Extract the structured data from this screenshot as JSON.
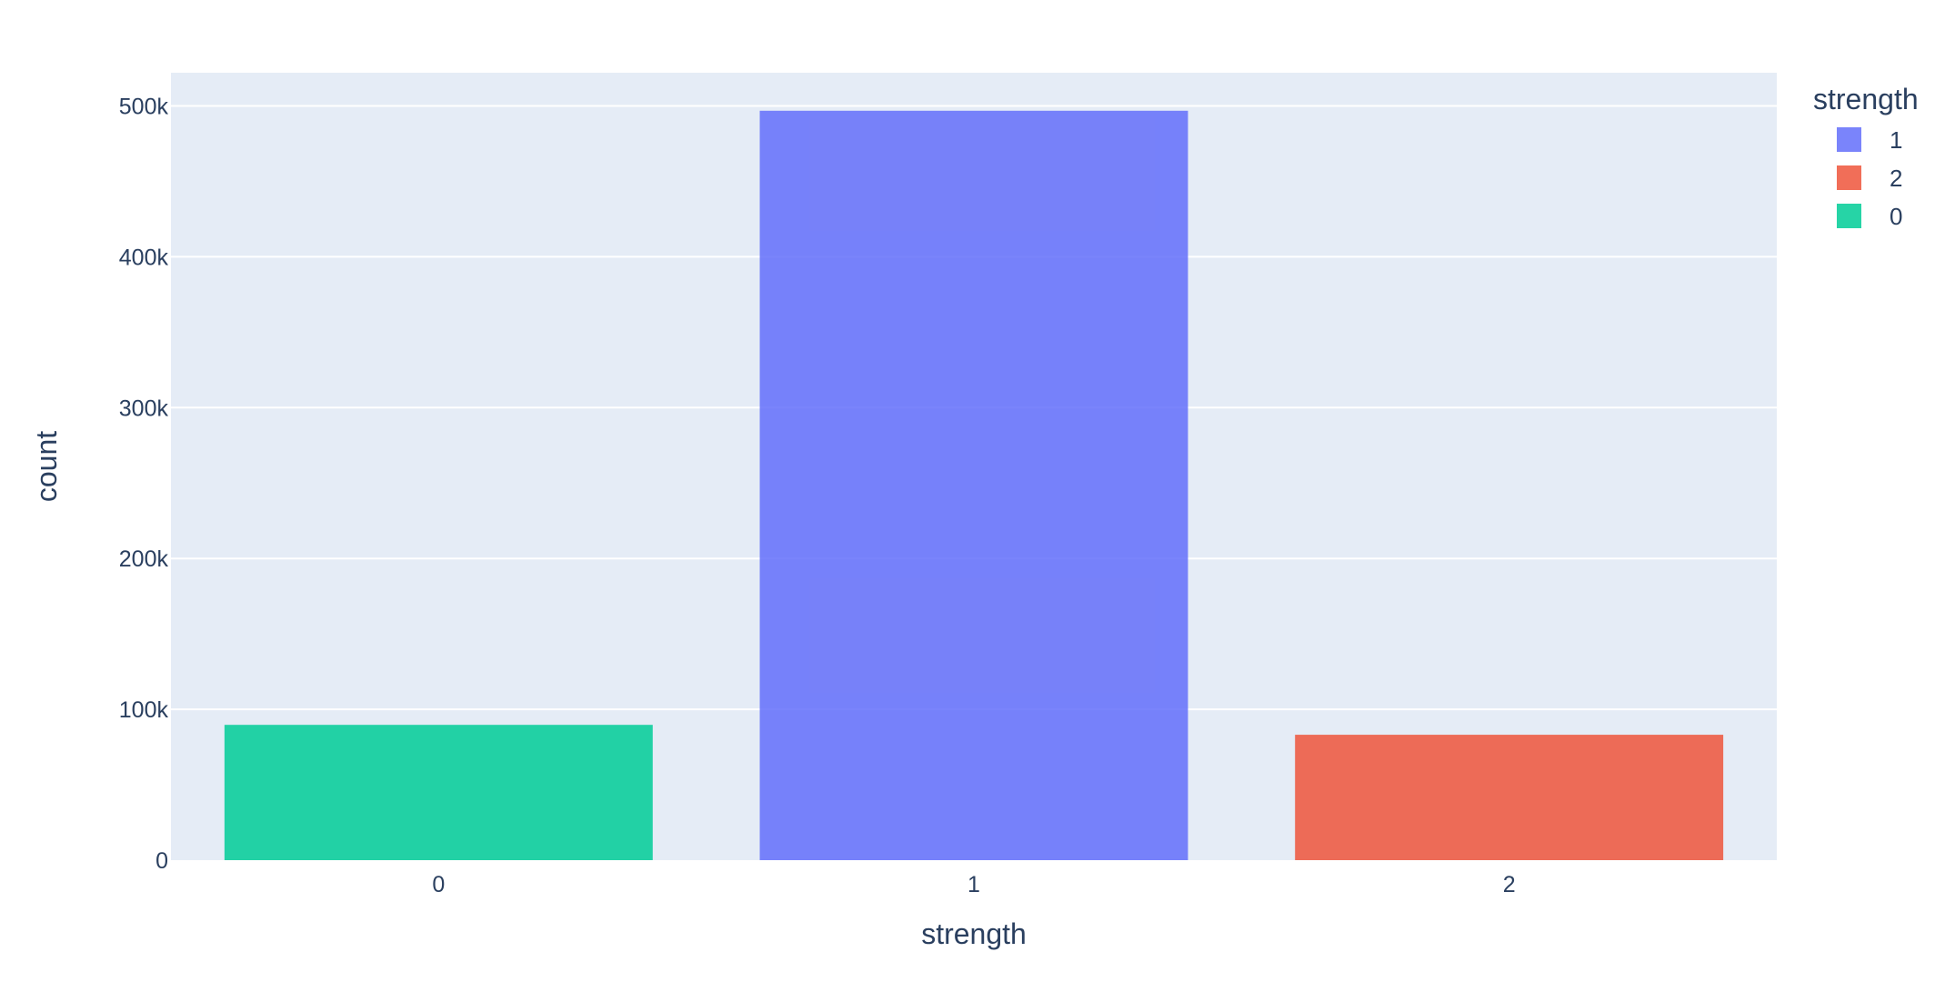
{
  "chart_data": {
    "type": "bar",
    "xlabel": "strength",
    "ylabel": "count",
    "categories": [
      "0",
      "1",
      "2"
    ],
    "series": [
      {
        "name": "1",
        "category": "1",
        "value": 496801,
        "color": "#636efa"
      },
      {
        "name": "2",
        "category": "2",
        "value": 83137,
        "color": "#ef553b"
      },
      {
        "name": "0",
        "category": "0",
        "value": 89702,
        "color": "#00cc96"
      }
    ],
    "ylim": [
      0,
      522000
    ],
    "yticks": [
      0,
      100000,
      200000,
      300000,
      400000,
      500000
    ],
    "ytick_labels": [
      "0",
      "100k",
      "200k",
      "300k",
      "400k",
      "500k"
    ],
    "legend": {
      "title": "strength",
      "position": "top-right"
    },
    "grid": true,
    "plot_background": "#e5ecf6",
    "bar_opacity": 0.85
  }
}
